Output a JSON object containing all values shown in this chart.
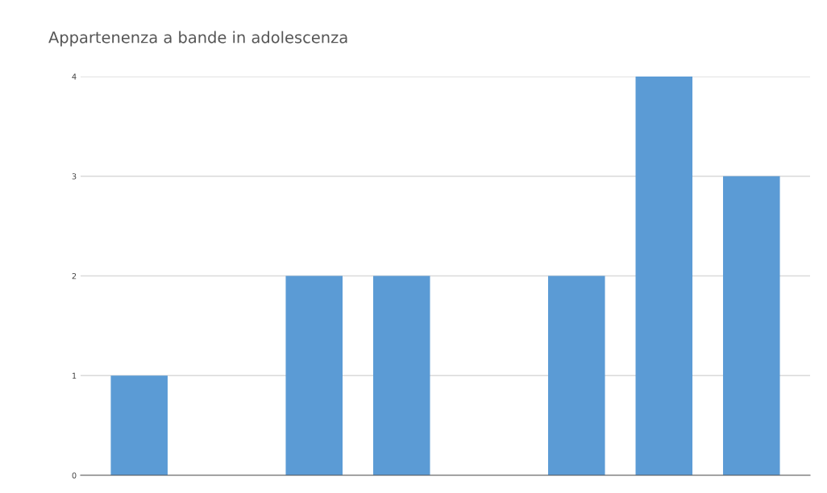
{
  "chart_data": {
    "type": "bar",
    "title": "Appartenenza a bande in adolescenza",
    "categories": [
      null,
      null,
      null,
      null,
      null,
      null,
      null,
      null
    ],
    "values": [
      1,
      0,
      2,
      2,
      0,
      2,
      4,
      3
    ],
    "color": "#5b9bd5",
    "ylim": [
      0,
      4
    ],
    "yticks": [
      0,
      1,
      2,
      3,
      4
    ],
    "grid": "y",
    "legend": false
  }
}
